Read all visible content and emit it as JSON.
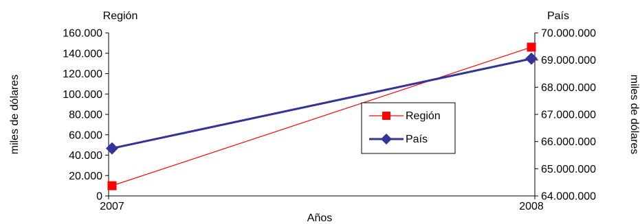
{
  "chart_data": {
    "type": "line",
    "x": [
      "2007",
      "2008"
    ],
    "xlabel": "Años",
    "left_axis": {
      "title": "Región",
      "label": "miles de dólares",
      "ylim": [
        0,
        160000
      ],
      "ticks": [
        "0",
        "20.000",
        "40.000",
        "60.000",
        "80.000",
        "100.000",
        "120.000",
        "140.000",
        "160.000"
      ]
    },
    "right_axis": {
      "title": "País",
      "label": "miles de dólares",
      "ylim": [
        64000000,
        70000000
      ],
      "ticks": [
        "64.000.000",
        "65.000.000",
        "66.000.000",
        "67.000.000",
        "68.000.000",
        "69.000.000",
        "70.000.000"
      ]
    },
    "series": [
      {
        "name": "Región",
        "axis": "left",
        "values": [
          10000,
          146000
        ],
        "color": "#ff0000",
        "marker": "square"
      },
      {
        "name": "País",
        "axis": "right",
        "values": [
          65750000,
          69050000
        ],
        "color": "#333399",
        "marker": "diamond"
      }
    ],
    "legend_position": "center-right",
    "grid": false
  }
}
